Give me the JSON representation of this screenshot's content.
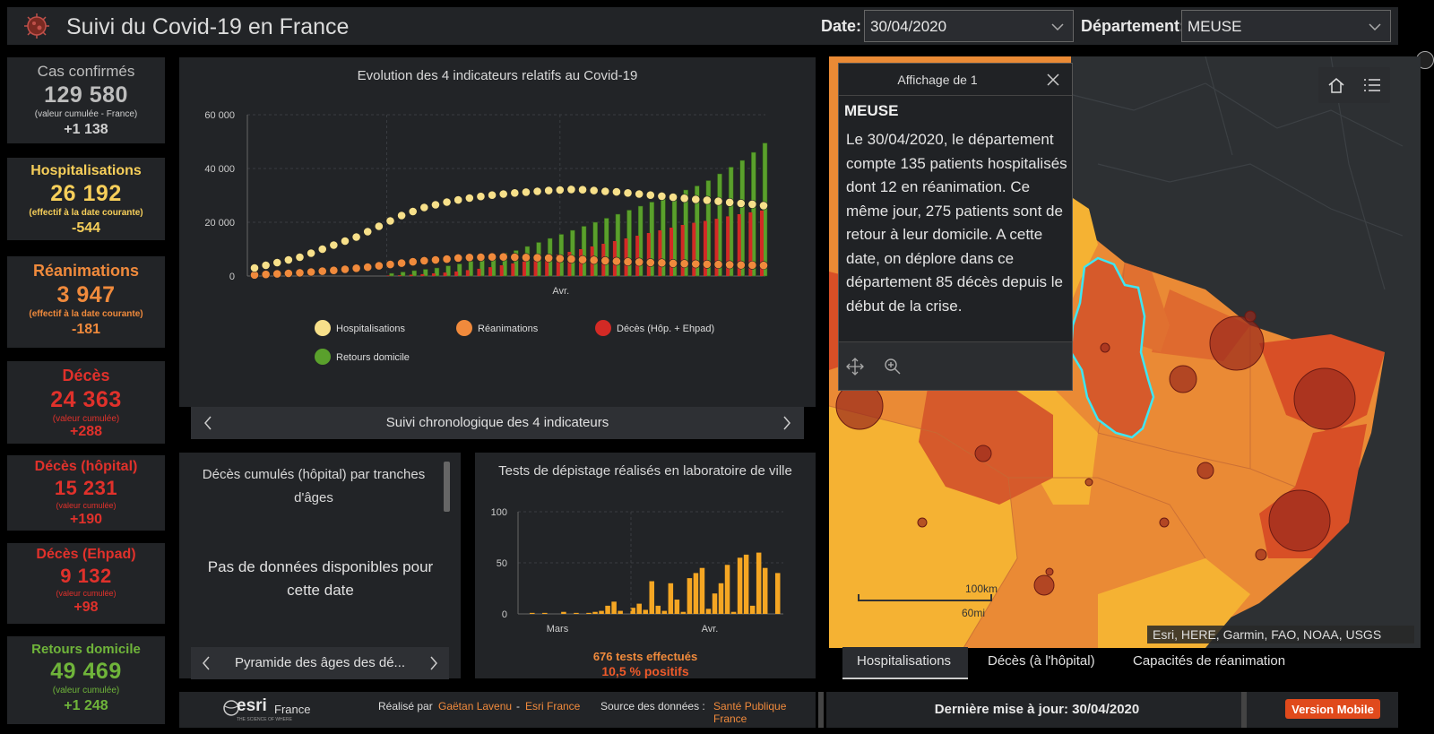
{
  "header": {
    "title": "Suivi du Covid-19 en France",
    "date_label": "Date:",
    "date_value": "30/04/2020",
    "dept_label": "Département:",
    "dept_value": "MEUSE"
  },
  "cards": [
    {
      "label": "Cas confirmés",
      "value": "129 580",
      "sub": "(valeur cumulée - France)",
      "delta": "+1 138",
      "color": "#bdbdbd"
    },
    {
      "label": "Hospitalisations",
      "value": "26 192",
      "sub": "(effectif à la date courante)",
      "delta": "-544",
      "color": "#f7cf5a"
    },
    {
      "label": "Réanimations",
      "value": "3 947",
      "sub": "(effectif à la date courante)",
      "delta": "-181",
      "color": "#f08a3c"
    },
    {
      "label": "Décès",
      "value": "24 363",
      "sub": "(valeur cumulée)",
      "delta": "+288",
      "color": "#e0312b"
    },
    {
      "label": "Décès (hôpital)",
      "value": "15 231",
      "sub": "(valeur cumulée)",
      "delta": "+190",
      "color": "#e0312b"
    },
    {
      "label": "Décès (Ehpad)",
      "value": "9 132",
      "sub": "(valeur cumulée)",
      "delta": "+98",
      "color": "#e0312b"
    },
    {
      "label": "Retours domicile",
      "value": "49 469",
      "sub": "(valeur cumulée)",
      "delta": "+1 248",
      "color": "#6fb43a"
    }
  ],
  "main_chart": {
    "nav_label": "Suivi chronologique des 4 indicateurs",
    "legend": [
      {
        "name": "Hospitalisations",
        "color": "#f7e08a"
      },
      {
        "name": "Réanimations",
        "color": "#f08a3c"
      },
      {
        "name": "Décès (Hôp. + Ehpad)",
        "color": "#d32a25"
      },
      {
        "name": "Retours domicile",
        "color": "#5aa02c"
      }
    ]
  },
  "age_panel": {
    "title": "Décès cumulés (hôpital) par tranches d'âges",
    "empty_text": "Pas de données disponibles pour cette date",
    "nav_label": "Pyramide des âges des dé..."
  },
  "tests_panel": {
    "title": "Tests de dépistage réalisés en laboratoire de ville",
    "summary_tests": "676 tests effectués",
    "summary_pos": "10,5 % positifs"
  },
  "chart_data": [
    {
      "type": "bar",
      "title": "Evolution des 4 indicateurs relatifs au Covid-19",
      "x_tick_labels": [
        "Avr."
      ],
      "ylim": [
        0,
        60000
      ],
      "y_ticks": [
        "0",
        "20 000",
        "40 000",
        "60 000"
      ],
      "series": [
        {
          "name": "Hospitalisations",
          "kind": "line-points",
          "color": "#f7e08a",
          "values": [
            3000,
            4000,
            5000,
            6000,
            7000,
            8500,
            10000,
            11500,
            13000,
            14500,
            16500,
            18500,
            20500,
            22500,
            24000,
            25500,
            26500,
            27500,
            28300,
            29000,
            29600,
            30100,
            30500,
            30900,
            31200,
            31500,
            31800,
            32000,
            32200,
            32100,
            31800,
            31500,
            31300,
            30900,
            30500,
            30100,
            29700,
            29300,
            28900,
            28500,
            28200,
            27800,
            27400,
            27000,
            26700,
            26192
          ]
        },
        {
          "name": "Réanimations",
          "kind": "line-points",
          "color": "#f08a3c",
          "values": [
            400,
            600,
            800,
            1000,
            1200,
            1500,
            1800,
            2100,
            2500,
            2900,
            3300,
            3800,
            4300,
            4800,
            5300,
            5700,
            6000,
            6300,
            6700,
            6900,
            7000,
            7100,
            7100,
            7000,
            6900,
            6800,
            6700,
            6500,
            6300,
            6100,
            5900,
            5700,
            5500,
            5300,
            5200,
            5000,
            4900,
            4700,
            4600,
            4500,
            4400,
            4300,
            4200,
            4100,
            4050,
            3947
          ]
        },
        {
          "name": "Décès (Hôp. + Ehpad)",
          "kind": "bar",
          "color": "#d32a25",
          "values": [
            0,
            0,
            0,
            0,
            0,
            0,
            0,
            0,
            0,
            0,
            0,
            0,
            200,
            300,
            500,
            700,
            1000,
            1300,
            1700,
            2200,
            2700,
            3300,
            4000,
            4700,
            5400,
            6100,
            7000,
            8000,
            9000,
            10000,
            11000,
            12000,
            13000,
            14000,
            15000,
            16000,
            17000,
            18000,
            19000,
            19800,
            20500,
            21300,
            22200,
            23000,
            23700,
            24363
          ]
        },
        {
          "name": "Retours domicile",
          "kind": "bar",
          "color": "#5aa02c",
          "values": [
            0,
            0,
            0,
            0,
            0,
            0,
            0,
            0,
            0,
            0,
            0,
            0,
            1000,
            1500,
            2000,
            2500,
            3000,
            3800,
            4500,
            5500,
            6500,
            7500,
            8500,
            9500,
            11000,
            12500,
            14000,
            15500,
            17000,
            18500,
            20000,
            21500,
            23000,
            24500,
            26000,
            27500,
            29000,
            30500,
            32000,
            33500,
            35500,
            38000,
            40500,
            43000,
            46000,
            49469
          ]
        }
      ]
    },
    {
      "type": "bar",
      "title": "Tests de dépistage réalisés en laboratoire de ville",
      "x_tick_labels": [
        "Mars",
        "Avr."
      ],
      "ylim": [
        0,
        100
      ],
      "y_ticks": [
        "0",
        "50",
        "100"
      ],
      "series": [
        {
          "name": "Tests",
          "color": "#f5a623",
          "values": [
            0,
            1,
            0,
            1,
            0,
            0,
            2,
            0,
            1,
            0,
            1,
            2,
            3,
            8,
            12,
            3,
            0,
            6,
            10,
            4,
            32,
            8,
            3,
            30,
            14,
            2,
            35,
            40,
            45,
            5,
            20,
            30,
            48,
            2,
            55,
            58,
            8,
            60,
            45,
            0,
            40
          ]
        }
      ]
    }
  ],
  "popup": {
    "head": "Affichage de 1",
    "dept": "MEUSE",
    "body": "Le 30/04/2020, le département compte 135 patients hospitalisés dont 12 en réanimation. Ce même jour, 275 patients sont de retour à leur domicile. A cette date, on déplore dans ce département 85 décès depuis le début de la crise."
  },
  "map": {
    "scale_km": "100km",
    "scale_mi": "60mi",
    "attribution": "Esri, HERE, Garmin, FAO, NOAA, USGS",
    "tabs": [
      "Hospitalisations",
      "Décès (à l'hôpital)",
      "Capacités de réanimation"
    ]
  },
  "footer": {
    "esri_text": "esri",
    "esri_country": "France",
    "esri_tagline": "THE SCIENCE OF WHERE",
    "credit_prefix": "Réalisé par",
    "author": "Gaëtan Lavenu",
    "sep": "-",
    "company": "Esri France",
    "source_label": "Source des données :",
    "source": "Santé Publique France",
    "updated": "Dernière mise à jour: 30/04/2020",
    "mobile_btn": "Version Mobile"
  }
}
